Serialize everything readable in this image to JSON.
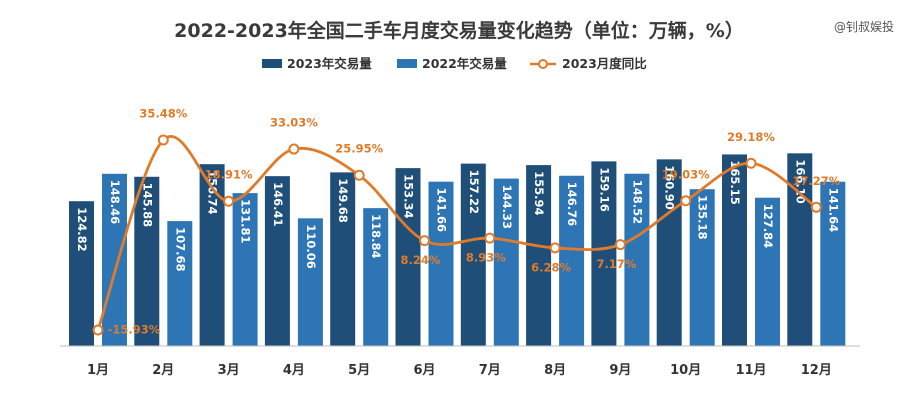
{
  "watermark": "@钊叔娱投",
  "colors": {
    "bar2023": "#1f4e79",
    "bar2022": "#2e75b6",
    "line": "#e07b2a",
    "axis": "#bfbfbf"
  },
  "chart_data": {
    "type": "bar",
    "title": "2022-2023年全国二手车月度交易量变化趋势（单位：万辆，%）",
    "categories": [
      "1月",
      "2月",
      "3月",
      "4月",
      "5月",
      "6月",
      "7月",
      "8月",
      "9月",
      "10月",
      "11月",
      "12月"
    ],
    "series": [
      {
        "name": "2023年交易量",
        "type": "bar",
        "values": [
          124.82,
          145.88,
          156.74,
          146.41,
          149.68,
          153.34,
          157.22,
          155.94,
          159.16,
          160.9,
          165.15,
          166.1
        ],
        "labels": [
          "124.82",
          "145.88",
          "156.74",
          "146.41",
          "149.68",
          "153.34",
          "157.22",
          "155.94",
          "159.16",
          "160.90",
          "165.15",
          "166.10"
        ]
      },
      {
        "name": "2022年交易量",
        "type": "bar",
        "values": [
          148.46,
          107.68,
          131.81,
          110.06,
          118.84,
          141.66,
          144.33,
          146.76,
          148.52,
          135.18,
          127.84,
          141.64
        ],
        "labels": [
          "148.46",
          "107.68",
          "131.81",
          "110.06",
          "118.84",
          "141.66",
          "144.33",
          "146.76",
          "148.52",
          "135.18",
          "127.84",
          "141.64"
        ]
      },
      {
        "name": "2023月度同比",
        "type": "line",
        "values": [
          -15.93,
          35.48,
          18.91,
          33.03,
          25.95,
          8.24,
          8.93,
          6.28,
          7.17,
          19.03,
          29.18,
          17.27
        ],
        "labels": [
          "-15.93%",
          "35.48%",
          "18.91%",
          "33.03%",
          "25.95%",
          "8.24%",
          "8.93%",
          "6.28%",
          "7.17%",
          "19.03%",
          "29.18%",
          "17.27%"
        ]
      }
    ],
    "legend_position": "top-center",
    "grid": false
  }
}
